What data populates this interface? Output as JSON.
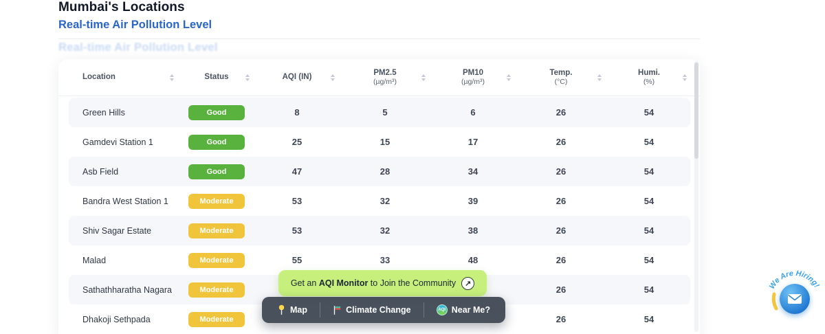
{
  "page": {
    "title": "Mumbai's Locations",
    "subtitle": "Real-time Air Pollution Level",
    "ghost_subtitle": "Real-time Air Pollution Level"
  },
  "table": {
    "columns": [
      {
        "label": "Location",
        "sub": ""
      },
      {
        "label": "Status",
        "sub": ""
      },
      {
        "label": "AQI (IN)",
        "sub": ""
      },
      {
        "label": "PM2.5",
        "sub": "(µg/m³)"
      },
      {
        "label": "PM10",
        "sub": "(µg/m³)"
      },
      {
        "label": "Temp.",
        "sub": "(°C)"
      },
      {
        "label": "Humi.",
        "sub": "(%)"
      }
    ],
    "rows": [
      {
        "location": "Green Hills",
        "status": "Good",
        "aqi": "8",
        "pm25": "5",
        "pm10": "6",
        "temp": "26",
        "humi": "54"
      },
      {
        "location": "Gamdevi Station 1",
        "status": "Good",
        "aqi": "25",
        "pm25": "15",
        "pm10": "17",
        "temp": "26",
        "humi": "54"
      },
      {
        "location": "Asb Field",
        "status": "Good",
        "aqi": "47",
        "pm25": "28",
        "pm10": "34",
        "temp": "26",
        "humi": "54"
      },
      {
        "location": "Bandra West Station 1",
        "status": "Moderate",
        "aqi": "53",
        "pm25": "32",
        "pm10": "39",
        "temp": "26",
        "humi": "54"
      },
      {
        "location": "Shiv Sagar Estate",
        "status": "Moderate",
        "aqi": "53",
        "pm25": "32",
        "pm10": "38",
        "temp": "26",
        "humi": "54"
      },
      {
        "location": "Malad",
        "status": "Moderate",
        "aqi": "55",
        "pm25": "33",
        "pm10": "48",
        "temp": "26",
        "humi": "54"
      },
      {
        "location": "Sathathharatha Nagara",
        "status": "Moderate",
        "aqi": "",
        "pm25": "",
        "pm10": "",
        "temp": "26",
        "humi": "54"
      },
      {
        "location": "Dhakoji Sethpada",
        "status": "Moderate",
        "aqi": "",
        "pm25": "",
        "pm10": "",
        "temp": "26",
        "humi": "54"
      }
    ]
  },
  "banner": {
    "prefix": "Get an ",
    "highlight": "AQI Monitor",
    "suffix": " to Join the Community",
    "arrow_icon": "↗"
  },
  "navbar": {
    "items": [
      {
        "label": "Map",
        "icon": "map-pin-icon"
      },
      {
        "label": "Climate Change",
        "icon": "climate-flag-icon"
      },
      {
        "label": "Near Me?",
        "icon": "aqi-logo-icon",
        "logo_text": "AQI"
      }
    ]
  },
  "hiring": {
    "text": "We Are Hiring!"
  },
  "colors": {
    "accent_blue": "#2a65c8",
    "banner_bg": "#c6ef7c",
    "navbar_bg": "rgba(58,66,78,0.92)",
    "status": {
      "Good": "#58b23d",
      "Moderate": "#f1c53b"
    }
  }
}
